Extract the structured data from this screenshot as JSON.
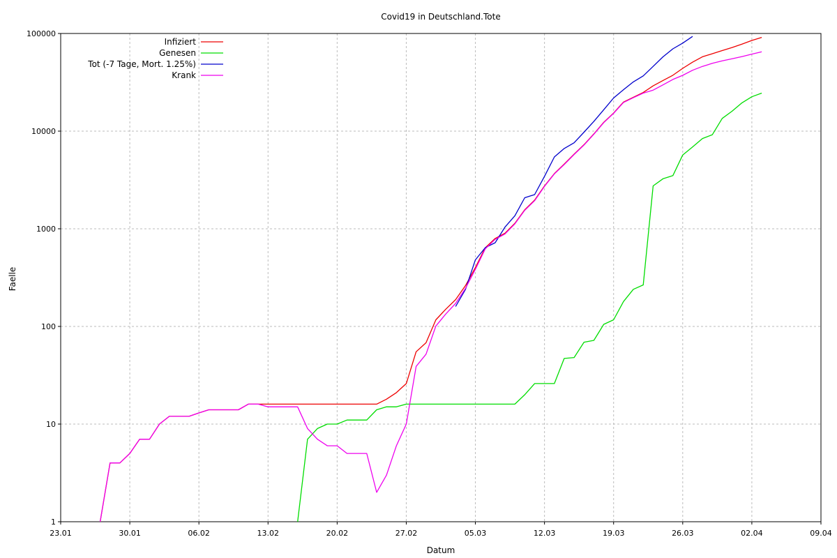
{
  "chart_data": {
    "type": "line",
    "title": "Covid19 in Deutschland.Tote",
    "xlabel": "Datum",
    "ylabel": "Faelle",
    "y_scale": "log",
    "ylim": [
      1,
      100000
    ],
    "xlim": [
      "2020-01-23",
      "2020-04-09"
    ],
    "grid": true,
    "legend_position": "top-left",
    "x_ticks": [
      {
        "date": "2020-01-23",
        "label": "23.01"
      },
      {
        "date": "2020-01-30",
        "label": "30.01"
      },
      {
        "date": "2020-02-06",
        "label": "06.02"
      },
      {
        "date": "2020-02-13",
        "label": "13.02"
      },
      {
        "date": "2020-02-20",
        "label": "20.02"
      },
      {
        "date": "2020-02-27",
        "label": "27.02"
      },
      {
        "date": "2020-03-05",
        "label": "05.03"
      },
      {
        "date": "2020-03-12",
        "label": "12.03"
      },
      {
        "date": "2020-03-19",
        "label": "19.03"
      },
      {
        "date": "2020-03-26",
        "label": "26.03"
      },
      {
        "date": "2020-04-02",
        "label": "02.04"
      },
      {
        "date": "2020-04-09",
        "label": "09.04"
      }
    ],
    "y_ticks": [
      {
        "value": 1,
        "label": "1"
      },
      {
        "value": 10,
        "label": "10"
      },
      {
        "value": 100,
        "label": "100"
      },
      {
        "value": 1000,
        "label": "1000"
      },
      {
        "value": 10000,
        "label": "10000"
      },
      {
        "value": 100000,
        "label": "100000"
      }
    ],
    "series": [
      {
        "name": "Infiziert",
        "color": "#ee0000",
        "points": [
          [
            "2020-01-27",
            1
          ],
          [
            "2020-01-28",
            4
          ],
          [
            "2020-01-29",
            4
          ],
          [
            "2020-01-30",
            5
          ],
          [
            "2020-01-31",
            7
          ],
          [
            "2020-02-01",
            7
          ],
          [
            "2020-02-02",
            10
          ],
          [
            "2020-02-03",
            12
          ],
          [
            "2020-02-05",
            12
          ],
          [
            "2020-02-06",
            13
          ],
          [
            "2020-02-07",
            14
          ],
          [
            "2020-02-10",
            14
          ],
          [
            "2020-02-11",
            16
          ],
          [
            "2020-02-24",
            16
          ],
          [
            "2020-02-25",
            18
          ],
          [
            "2020-02-26",
            21
          ],
          [
            "2020-02-27",
            26
          ],
          [
            "2020-02-28",
            55
          ],
          [
            "2020-02-29",
            68
          ],
          [
            "2020-03-01",
            117
          ],
          [
            "2020-03-02",
            150
          ],
          [
            "2020-03-03",
            188
          ],
          [
            "2020-03-04",
            262
          ],
          [
            "2020-03-05",
            400
          ],
          [
            "2020-03-06",
            639
          ],
          [
            "2020-03-07",
            795
          ],
          [
            "2020-03-08",
            902
          ],
          [
            "2020-03-09",
            1139
          ],
          [
            "2020-03-10",
            1567
          ],
          [
            "2020-03-11",
            1966
          ],
          [
            "2020-03-12",
            2745
          ],
          [
            "2020-03-13",
            3675
          ],
          [
            "2020-03-14",
            4599
          ],
          [
            "2020-03-15",
            5813
          ],
          [
            "2020-03-16",
            7272
          ],
          [
            "2020-03-17",
            9367
          ],
          [
            "2020-03-18",
            12327
          ],
          [
            "2020-03-19",
            15320
          ],
          [
            "2020-03-20",
            19848
          ],
          [
            "2020-03-21",
            22213
          ],
          [
            "2020-03-22",
            24873
          ],
          [
            "2020-03-23",
            29056
          ],
          [
            "2020-03-24",
            32991
          ],
          [
            "2020-03-25",
            37323
          ],
          [
            "2020-03-26",
            43938
          ],
          [
            "2020-03-27",
            50871
          ],
          [
            "2020-03-28",
            57695
          ],
          [
            "2020-03-29",
            62095
          ],
          [
            "2020-03-30",
            66885
          ],
          [
            "2020-03-31",
            71808
          ],
          [
            "2020-04-01",
            77872
          ],
          [
            "2020-04-02",
            84794
          ],
          [
            "2020-04-03",
            91159
          ]
        ]
      },
      {
        "name": "Genesen",
        "color": "#00dd00",
        "points": [
          [
            "2020-02-16",
            1
          ],
          [
            "2020-02-17",
            7
          ],
          [
            "2020-02-18",
            9
          ],
          [
            "2020-02-19",
            10
          ],
          [
            "2020-02-20",
            10
          ],
          [
            "2020-02-21",
            11
          ],
          [
            "2020-02-23",
            11
          ],
          [
            "2020-02-24",
            14
          ],
          [
            "2020-02-25",
            15
          ],
          [
            "2020-02-26",
            15
          ],
          [
            "2020-02-27",
            16
          ],
          [
            "2020-03-09",
            16
          ],
          [
            "2020-03-10",
            20
          ],
          [
            "2020-03-11",
            26
          ],
          [
            "2020-03-13",
            26
          ],
          [
            "2020-03-14",
            47
          ],
          [
            "2020-03-15",
            48
          ],
          [
            "2020-03-16",
            69
          ],
          [
            "2020-03-17",
            72
          ],
          [
            "2020-03-18",
            105
          ],
          [
            "2020-03-19",
            117
          ],
          [
            "2020-03-20",
            180
          ],
          [
            "2020-03-21",
            240
          ],
          [
            "2020-03-22",
            266
          ],
          [
            "2020-03-23",
            2750
          ],
          [
            "2020-03-24",
            3250
          ],
          [
            "2020-03-25",
            3500
          ],
          [
            "2020-03-26",
            5700
          ],
          [
            "2020-03-27",
            6900
          ],
          [
            "2020-03-28",
            8400
          ],
          [
            "2020-03-29",
            9200
          ],
          [
            "2020-03-30",
            13500
          ],
          [
            "2020-03-31",
            16000
          ],
          [
            "2020-04-01",
            19500
          ],
          [
            "2020-04-02",
            22500
          ],
          [
            "2020-04-03",
            24500
          ]
        ]
      },
      {
        "name": "Tot (-7 Tage, Mort. 1.25%)",
        "color": "#0000cc",
        "points": [
          [
            "2020-03-03",
            160
          ],
          [
            "2020-03-04",
            240
          ],
          [
            "2020-03-05",
            480
          ],
          [
            "2020-03-06",
            640
          ],
          [
            "2020-03-07",
            720
          ],
          [
            "2020-03-08",
            1040
          ],
          [
            "2020-03-09",
            1360
          ],
          [
            "2020-03-10",
            2080
          ],
          [
            "2020-03-11",
            2240
          ],
          [
            "2020-03-12",
            3440
          ],
          [
            "2020-03-13",
            5440
          ],
          [
            "2020-03-14",
            6640
          ],
          [
            "2020-03-15",
            7600
          ],
          [
            "2020-03-16",
            9760
          ],
          [
            "2020-03-17",
            12560
          ],
          [
            "2020-03-18",
            16560
          ],
          [
            "2020-03-19",
            21840
          ],
          [
            "2020-03-20",
            26560
          ],
          [
            "2020-03-21",
            31920
          ],
          [
            "2020-03-22",
            36800
          ],
          [
            "2020-03-23",
            46000
          ],
          [
            "2020-03-24",
            57600
          ],
          [
            "2020-03-25",
            69600
          ],
          [
            "2020-03-26",
            79760
          ],
          [
            "2020-03-27",
            93280
          ]
        ]
      },
      {
        "name": "Krank",
        "color": "#ee00ee",
        "points": [
          [
            "2020-01-27",
            1
          ],
          [
            "2020-01-28",
            4
          ],
          [
            "2020-01-29",
            4
          ],
          [
            "2020-01-30",
            5
          ],
          [
            "2020-01-31",
            7
          ],
          [
            "2020-02-01",
            7
          ],
          [
            "2020-02-02",
            10
          ],
          [
            "2020-02-03",
            12
          ],
          [
            "2020-02-05",
            12
          ],
          [
            "2020-02-06",
            13
          ],
          [
            "2020-02-07",
            14
          ],
          [
            "2020-02-10",
            14
          ],
          [
            "2020-02-11",
            16
          ],
          [
            "2020-02-12",
            16
          ],
          [
            "2020-02-13",
            15
          ],
          [
            "2020-02-16",
            15
          ],
          [
            "2020-02-17",
            9
          ],
          [
            "2020-02-18",
            7
          ],
          [
            "2020-02-19",
            6
          ],
          [
            "2020-02-20",
            6
          ],
          [
            "2020-02-21",
            5
          ],
          [
            "2020-02-23",
            5
          ],
          [
            "2020-02-24",
            2
          ],
          [
            "2020-02-25",
            3
          ],
          [
            "2020-02-26",
            6
          ],
          [
            "2020-02-27",
            10
          ],
          [
            "2020-02-28",
            39
          ],
          [
            "2020-02-29",
            52
          ],
          [
            "2020-03-01",
            101
          ],
          [
            "2020-03-02",
            134
          ],
          [
            "2020-03-03",
            172
          ],
          [
            "2020-03-04",
            246
          ],
          [
            "2020-03-05",
            384
          ],
          [
            "2020-03-06",
            623
          ],
          [
            "2020-03-07",
            779
          ],
          [
            "2020-03-08",
            886
          ],
          [
            "2020-03-09",
            1123
          ],
          [
            "2020-03-10",
            1547
          ],
          [
            "2020-03-11",
            1940
          ],
          [
            "2020-03-12",
            2719
          ],
          [
            "2020-03-13",
            3649
          ],
          [
            "2020-03-14",
            4552
          ],
          [
            "2020-03-15",
            5765
          ],
          [
            "2020-03-16",
            7203
          ],
          [
            "2020-03-17",
            9295
          ],
          [
            "2020-03-18",
            12222
          ],
          [
            "2020-03-19",
            15203
          ],
          [
            "2020-03-20",
            19668
          ],
          [
            "2020-03-21",
            21973
          ],
          [
            "2020-03-22",
            24500
          ],
          [
            "2020-03-23",
            26306
          ],
          [
            "2020-03-24",
            29741
          ],
          [
            "2020-03-25",
            33823
          ],
          [
            "2020-03-26",
            37300
          ],
          [
            "2020-03-27",
            42000
          ],
          [
            "2020-03-28",
            46000
          ],
          [
            "2020-03-29",
            49500
          ],
          [
            "2020-03-30",
            52500
          ],
          [
            "2020-03-31",
            55000
          ],
          [
            "2020-04-01",
            58000
          ],
          [
            "2020-04-02",
            61500
          ],
          [
            "2020-04-03",
            65000
          ]
        ]
      }
    ]
  }
}
